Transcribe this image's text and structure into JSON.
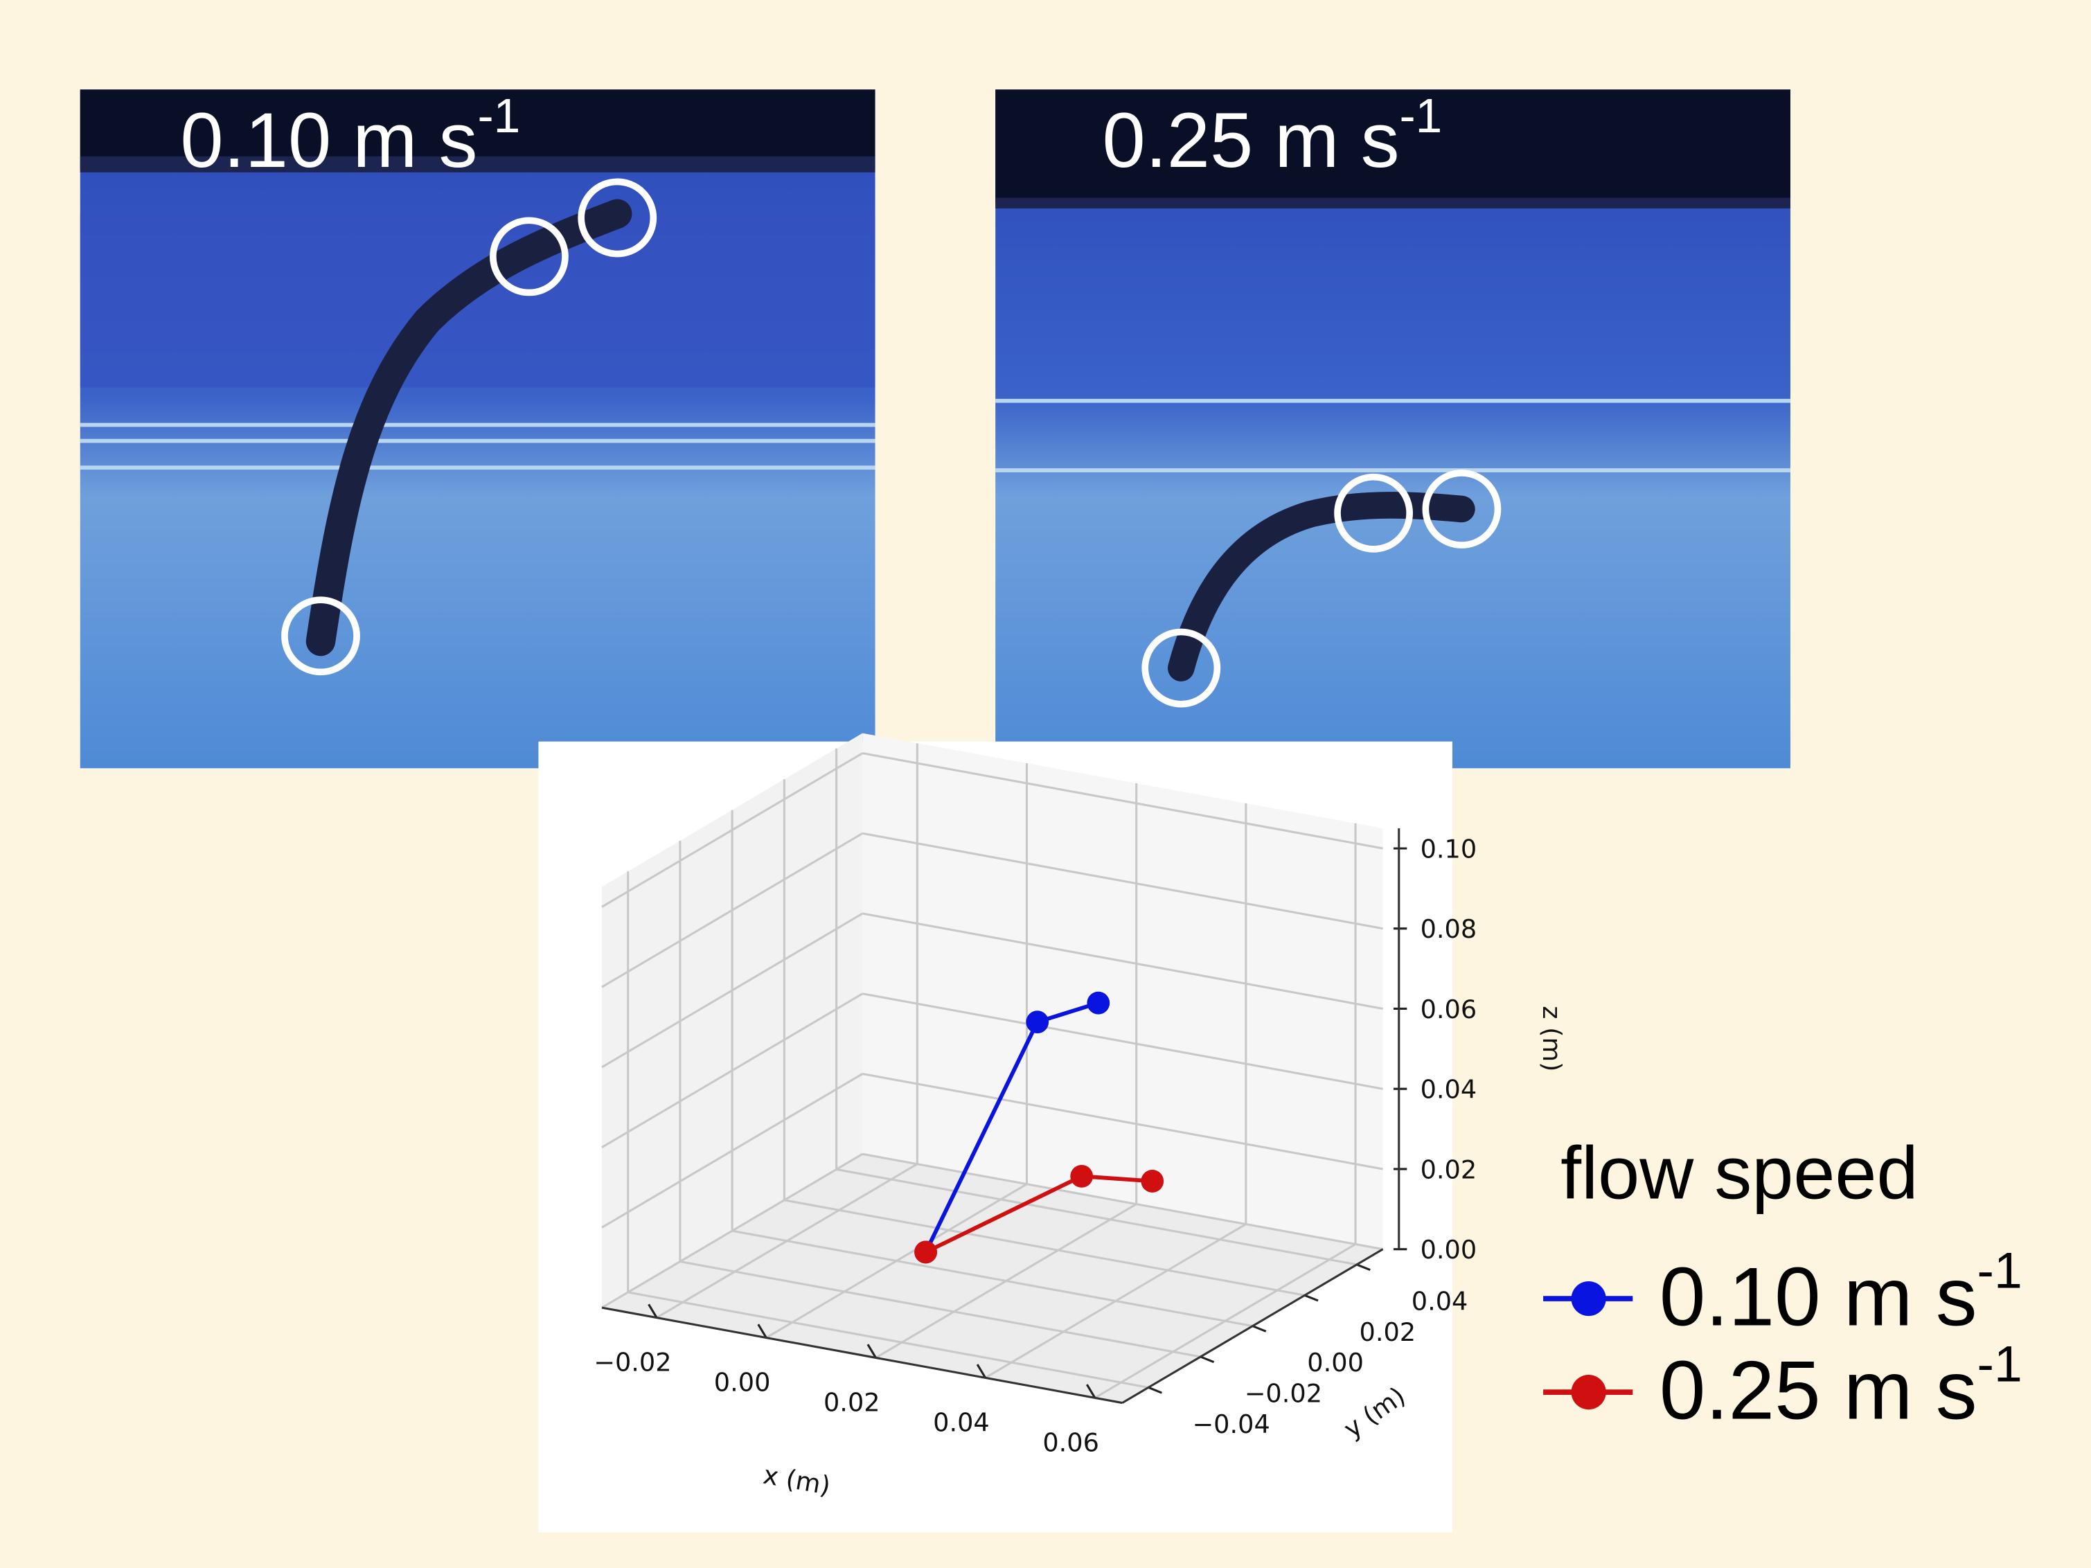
{
  "photos": [
    {
      "label": "0.10 m s",
      "label_superscript": "-1"
    },
    {
      "label": "0.25 m s",
      "label_superscript": "-1"
    }
  ],
  "chart_data": {
    "type": "line3d",
    "xlabel": "x (m)",
    "ylabel": "y (m)",
    "zlabel": "z (m)",
    "xlim": [
      -0.03,
      0.065
    ],
    "ylim": [
      -0.05,
      0.05
    ],
    "zlim": [
      0,
      0.105
    ],
    "xticks": [
      {
        "value": -0.02,
        "label": "−0.02"
      },
      {
        "value": 0,
        "label": "0.00"
      },
      {
        "value": 0.02,
        "label": "0.02"
      },
      {
        "value": 0.04,
        "label": "0.04"
      },
      {
        "value": 0.06,
        "label": "0.06"
      }
    ],
    "yticks": [
      {
        "value": -0.04,
        "label": "−0.04"
      },
      {
        "value": -0.02,
        "label": "−0.02"
      },
      {
        "value": 0,
        "label": "0.00"
      },
      {
        "value": 0.02,
        "label": "0.02"
      },
      {
        "value": 0.04,
        "label": "0.04"
      }
    ],
    "zticks": [
      {
        "value": 0,
        "label": "0.00"
      },
      {
        "value": 0.02,
        "label": "0.02"
      },
      {
        "value": 0.04,
        "label": "0.04"
      },
      {
        "value": 0.06,
        "label": "0.06"
      },
      {
        "value": 0.08,
        "label": "0.08"
      },
      {
        "value": 0.1,
        "label": "0.10"
      }
    ],
    "grid": true,
    "legend_title": "flow speed",
    "series": [
      {
        "name": "0.10 m s",
        "name_superscript": "-1",
        "color": "#0a14e0",
        "x": [
          0.002,
          0.02,
          0.024
        ],
        "y": [
          0.007,
          0.012,
          0.027
        ],
        "z": [
          0,
          0.06,
          0.06
        ]
      },
      {
        "name": "0.25 m s",
        "name_superscript": "-1",
        "color": "#d01010",
        "x": [
          0.002,
          0.02,
          0.031
        ],
        "y": [
          0.007,
          0.029,
          0.033
        ],
        "z": [
          0,
          0.015,
          0.015
        ]
      }
    ]
  }
}
